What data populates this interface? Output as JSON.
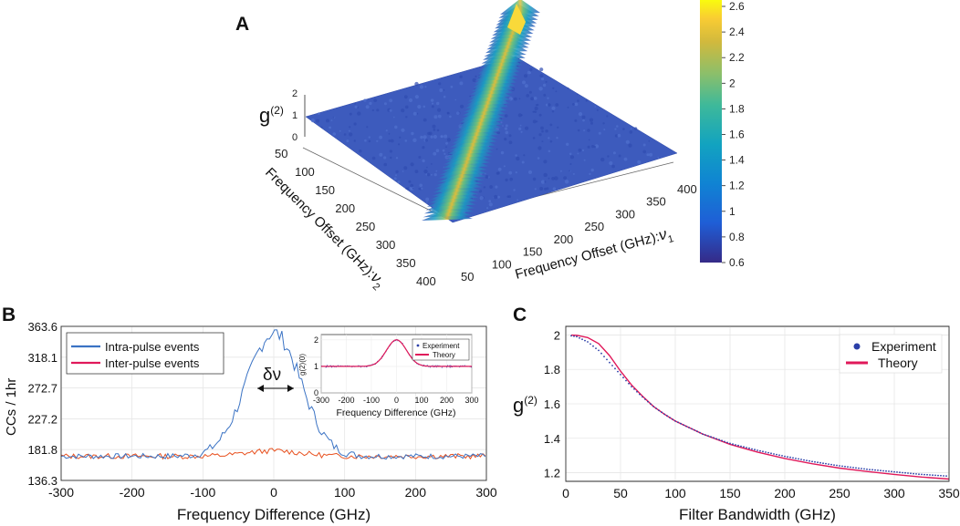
{
  "colors": {
    "blue_line": "#3b73c4",
    "red_line": "#e8501e",
    "theory_red": "#e0185a",
    "exp_blue": "#2b3fa8",
    "grid": "#e3e3e3",
    "axis": "#222222",
    "surface_base": "#3d5bbd"
  },
  "chart_data": [
    {
      "panel": "A",
      "type": "heatmap",
      "label": "A",
      "zlabel": "g",
      "zlabel_sup": "(2)",
      "ztick_labels": [
        "0",
        "1",
        "2"
      ],
      "x_label": "Frequency Offset (GHz):",
      "x_label_nu": "ν",
      "x_label_sub": "1",
      "y_label": "Frequency Offset (GHz):",
      "y_label_nu": "ν",
      "y_label_sub": "2",
      "x_tick_labels": [
        "50",
        "100",
        "150",
        "200",
        "250",
        "300",
        "350",
        "400"
      ],
      "y_tick_labels": [
        "50",
        "100",
        "150",
        "200",
        "250",
        "300",
        "350",
        "400"
      ],
      "colorbar_range": [
        0.6,
        2.65
      ],
      "colorbar_tick_labels": [
        "0.6",
        "0.8",
        "1",
        "1.2",
        "1.4",
        "1.6",
        "1.8",
        "2",
        "2.2",
        "2.4",
        "2.6"
      ],
      "colorbar_ticks": [
        0.6,
        0.8,
        1.0,
        1.2,
        1.4,
        1.6,
        1.8,
        2.0,
        2.2,
        2.4,
        2.6
      ],
      "surface": {
        "baseline": 1.0,
        "peak": 2.6,
        "ridge": "diagonal ν1 = ν2",
        "ridge_width_ghz": 30,
        "max_at": [
          400,
          400
        ]
      }
    },
    {
      "panel": "B",
      "type": "line",
      "label": "B",
      "xlabel": "Frequency Difference (GHz)",
      "ylabel": "CCs / 1hr",
      "xlim": [
        -300,
        300
      ],
      "ylim": [
        136.3,
        363.6
      ],
      "x_tick_labels": [
        "-300",
        "-200",
        "-100",
        "0",
        "100",
        "200",
        "300"
      ],
      "y_tick_labels": [
        "136.3",
        "181.8",
        "227.2",
        "272.7",
        "318.1",
        "363.6"
      ],
      "y_ticks": [
        136.3,
        181.8,
        227.2,
        272.7,
        318.1,
        363.6
      ],
      "x_ticks": [
        -300,
        -200,
        -100,
        0,
        100,
        200,
        300
      ],
      "annotation": "δν",
      "series": [
        {
          "name": "Intra-pulse events",
          "model": {
            "baseline": 172,
            "peak_height": 182,
            "sigma_ghz": 38,
            "noise": 4,
            "seed": 7
          }
        },
        {
          "name": "Inter-pulse events",
          "model": {
            "baseline": 172,
            "peak_height": 8,
            "sigma_ghz": 38,
            "noise": 4,
            "seed": 13
          }
        }
      ],
      "inset": {
        "type": "line",
        "ylabel": "g(2)(0)",
        "xlabel": "Frequency Difference (GHz)",
        "xlim": [
          -300,
          300
        ],
        "ylim": [
          0,
          2.2
        ],
        "x_tick_labels": [
          "-300",
          "-200",
          "-100",
          "0",
          "100",
          "200",
          "300"
        ],
        "y_tick_labels": [
          "0",
          "1",
          "2"
        ],
        "x_ticks": [
          -300,
          -200,
          -100,
          0,
          100,
          200,
          300
        ],
        "y_ticks": [
          0,
          1,
          2
        ],
        "legend": [
          "Experiment",
          "Theory"
        ],
        "model": {
          "baseline": 1.0,
          "peak_height": 1.0,
          "sigma_ghz": 40
        }
      }
    },
    {
      "panel": "C",
      "type": "line",
      "label": "C",
      "xlabel": "Filter Bandwidth (GHz)",
      "ylabel": "g",
      "ylabel_sup": "(2)",
      "xlim": [
        0,
        350
      ],
      "ylim": [
        1.15,
        2.05
      ],
      "x_tick_labels": [
        "0",
        "50",
        "100",
        "150",
        "200",
        "250",
        "300",
        "350"
      ],
      "y_tick_labels": [
        "1.2",
        "1.4",
        "1.6",
        "1.8",
        "2"
      ],
      "x_ticks": [
        0,
        50,
        100,
        150,
        200,
        250,
        300,
        350
      ],
      "y_ticks": [
        1.2,
        1.4,
        1.6,
        1.8,
        2.0
      ],
      "series": [
        {
          "name": "Experiment",
          "x": [
            5,
            10,
            20,
            30,
            40,
            50,
            60,
            70,
            80,
            90,
            100,
            125,
            150,
            175,
            200,
            225,
            250,
            275,
            300,
            325,
            350
          ],
          "values": [
            1.995,
            1.99,
            1.96,
            1.91,
            1.84,
            1.77,
            1.7,
            1.64,
            1.585,
            1.54,
            1.5,
            1.425,
            1.37,
            1.33,
            1.295,
            1.265,
            1.24,
            1.22,
            1.205,
            1.19,
            1.18
          ]
        },
        {
          "name": "Theory",
          "x": [
            5,
            10,
            20,
            30,
            40,
            50,
            60,
            70,
            80,
            90,
            100,
            125,
            150,
            175,
            200,
            225,
            250,
            275,
            300,
            325,
            350
          ],
          "values": [
            1.999,
            1.998,
            1.985,
            1.95,
            1.88,
            1.79,
            1.71,
            1.645,
            1.585,
            1.54,
            1.5,
            1.425,
            1.365,
            1.32,
            1.283,
            1.252,
            1.227,
            1.207,
            1.19,
            1.175,
            1.163
          ]
        }
      ]
    }
  ]
}
